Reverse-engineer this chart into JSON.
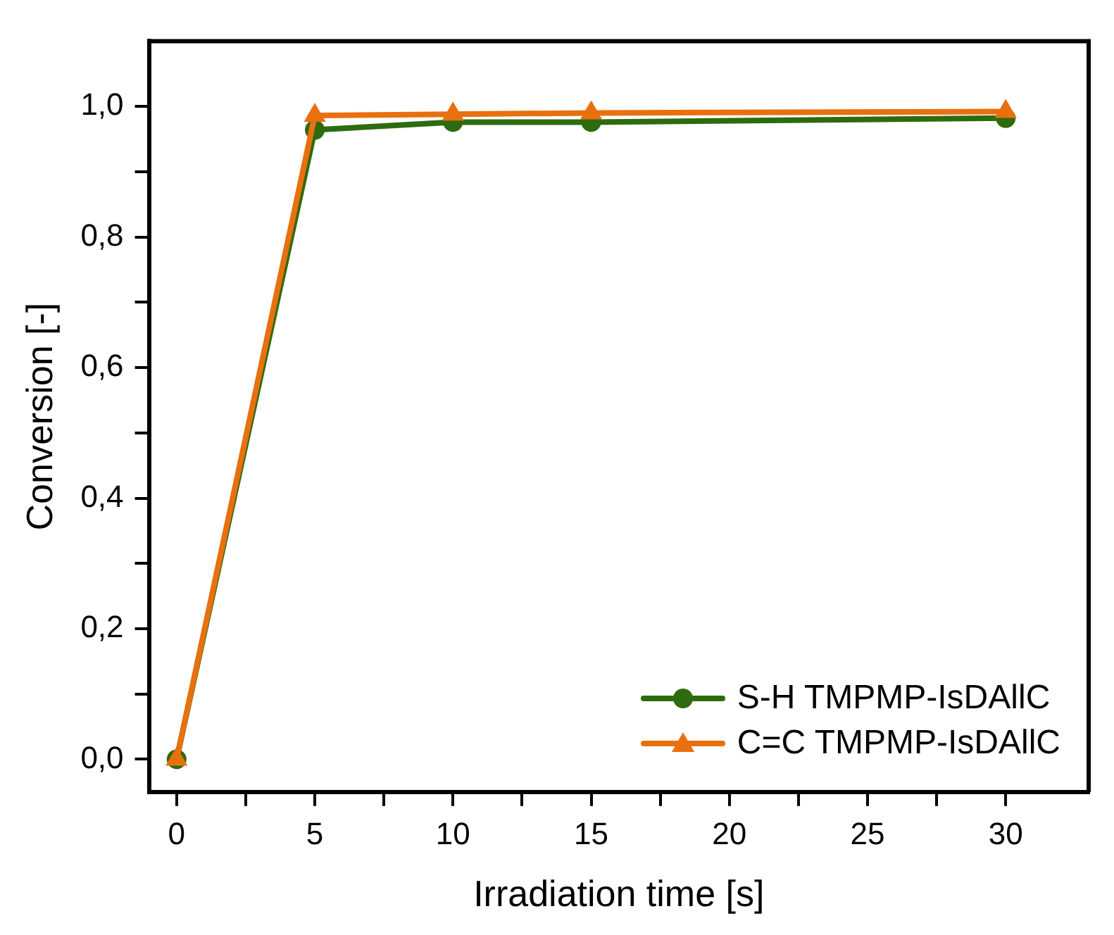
{
  "chart_data": {
    "type": "line",
    "xlabel": "Irradiation time [s]",
    "ylabel": "Conversion [-]",
    "x": [
      0,
      5,
      10,
      15,
      30
    ],
    "series": [
      {
        "name": "S-H TMPMP-IsDAllC",
        "color": "#2e6b0e",
        "marker": "circle",
        "values": [
          0,
          0.964,
          0.976,
          0.976,
          0.982
        ]
      },
      {
        "name": "C=C TMPMP-IsDAllC",
        "color": "#e8700f",
        "marker": "triangle",
        "values": [
          0,
          0.986,
          0.988,
          0.99,
          0.992
        ]
      }
    ],
    "xlim": [
      -1,
      33
    ],
    "ylim": [
      -0.05,
      1.1
    ],
    "xticks": [
      0,
      {
        "value": 2.5,
        "label": null
      },
      5,
      {
        "value": 7.5,
        "label": null
      },
      10,
      {
        "value": 12.5,
        "label": null
      },
      15,
      {
        "value": 17.5,
        "label": null
      },
      20,
      {
        "value": 22.5,
        "label": null
      },
      25,
      {
        "value": 27.5,
        "label": null
      },
      30
    ],
    "yticks": [
      {
        "value": 0,
        "label": "0,0"
      },
      {
        "value": 0.1,
        "label": null
      },
      {
        "value": 0.2,
        "label": "0,2"
      },
      {
        "value": 0.3,
        "label": null
      },
      {
        "value": 0.4,
        "label": "0,4"
      },
      {
        "value": 0.5,
        "label": null
      },
      {
        "value": 0.6,
        "label": "0,6"
      },
      {
        "value": 0.7,
        "label": null
      },
      {
        "value": 0.8,
        "label": "0,8"
      },
      {
        "value": 0.9,
        "label": null
      },
      {
        "value": 1,
        "label": "1,0"
      }
    ],
    "grid": false,
    "legend": "bottom right",
    "line_style": "solid"
  }
}
